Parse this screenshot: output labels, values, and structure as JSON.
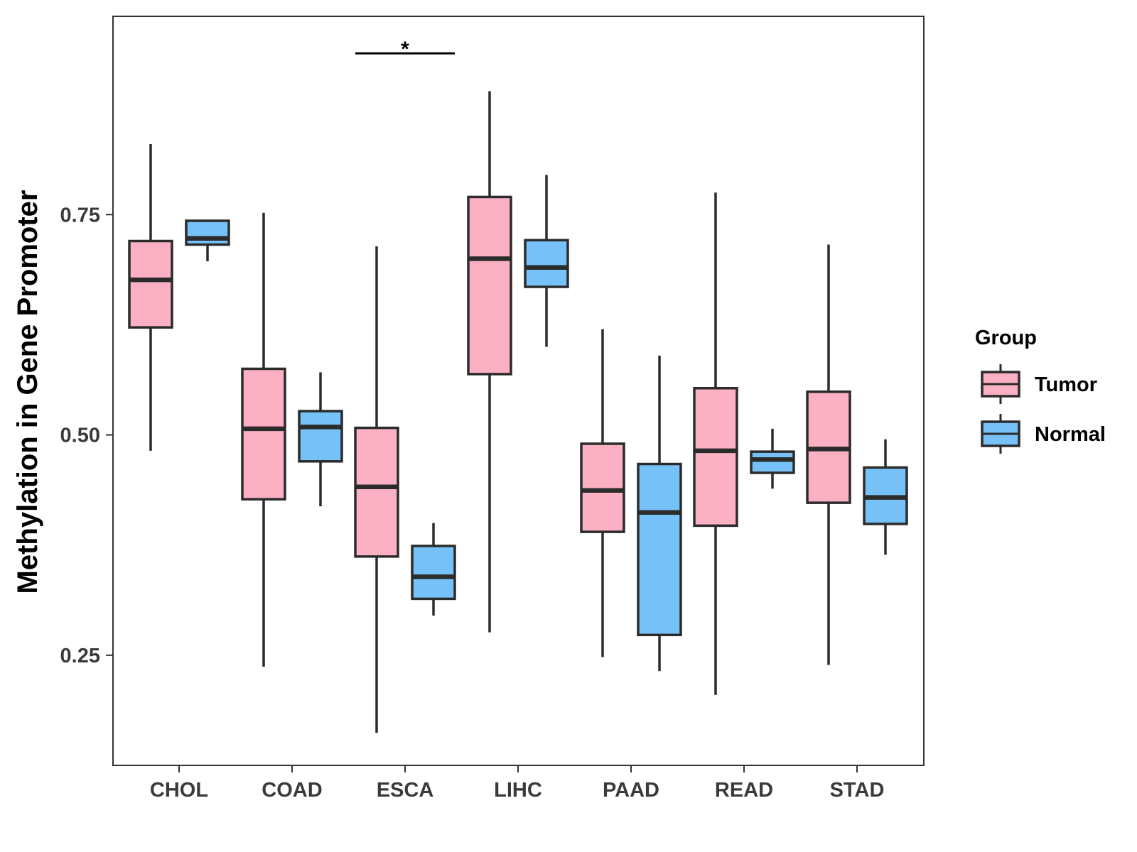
{
  "chart_data": {
    "type": "boxplot",
    "title": "",
    "xlabel": "",
    "ylabel": "Methylation in Gene Promoter",
    "ylim": [
      0.125,
      0.975
    ],
    "yticks": [
      0.25,
      0.5,
      0.75
    ],
    "ytick_labels": [
      "0.25",
      "0.50",
      "0.75"
    ],
    "categories": [
      "CHOL",
      "COAD",
      "ESCA",
      "LIHC",
      "PAAD",
      "READ",
      "STAD"
    ],
    "legend": {
      "title": "Group",
      "position": "right",
      "entries": [
        {
          "name": "Tumor",
          "color": "#fbb0c3"
        },
        {
          "name": "Normal",
          "color": "#76c1f8"
        }
      ]
    },
    "series": [
      {
        "name": "Tumor",
        "color": "#fbb0c3",
        "boxes": [
          {
            "min": 0.482,
            "q1": 0.622,
            "median": 0.676,
            "q3": 0.72,
            "max": 0.83
          },
          {
            "min": 0.237,
            "q1": 0.427,
            "median": 0.507,
            "q3": 0.575,
            "max": 0.752
          },
          {
            "min": 0.162,
            "q1": 0.362,
            "median": 0.441,
            "q3": 0.508,
            "max": 0.714
          },
          {
            "min": 0.276,
            "q1": 0.569,
            "median": 0.7,
            "q3": 0.77,
            "max": 0.89
          },
          {
            "min": 0.248,
            "q1": 0.39,
            "median": 0.437,
            "q3": 0.49,
            "max": 0.62
          },
          {
            "min": 0.205,
            "q1": 0.397,
            "median": 0.482,
            "q3": 0.553,
            "max": 0.775
          },
          {
            "min": 0.239,
            "q1": 0.423,
            "median": 0.484,
            "q3": 0.549,
            "max": 0.716
          }
        ]
      },
      {
        "name": "Normal",
        "color": "#76c1f8",
        "boxes": [
          {
            "min": 0.697,
            "q1": 0.716,
            "median": 0.723,
            "q3": 0.743,
            "max": 0.743
          },
          {
            "min": 0.419,
            "q1": 0.47,
            "median": 0.509,
            "q3": 0.527,
            "max": 0.571
          },
          {
            "min": 0.295,
            "q1": 0.314,
            "median": 0.339,
            "q3": 0.374,
            "max": 0.4
          },
          {
            "min": 0.6,
            "q1": 0.668,
            "median": 0.69,
            "q3": 0.721,
            "max": 0.795
          },
          {
            "min": 0.232,
            "q1": 0.273,
            "median": 0.412,
            "q3": 0.467,
            "max": 0.59
          },
          {
            "min": 0.439,
            "q1": 0.457,
            "median": 0.472,
            "q3": 0.481,
            "max": 0.507
          },
          {
            "min": 0.364,
            "q1": 0.399,
            "median": 0.429,
            "q3": 0.463,
            "max": 0.495
          }
        ]
      }
    ],
    "annotations": [
      {
        "text": "*",
        "category": "ESCA",
        "y": 0.933
      }
    ]
  }
}
